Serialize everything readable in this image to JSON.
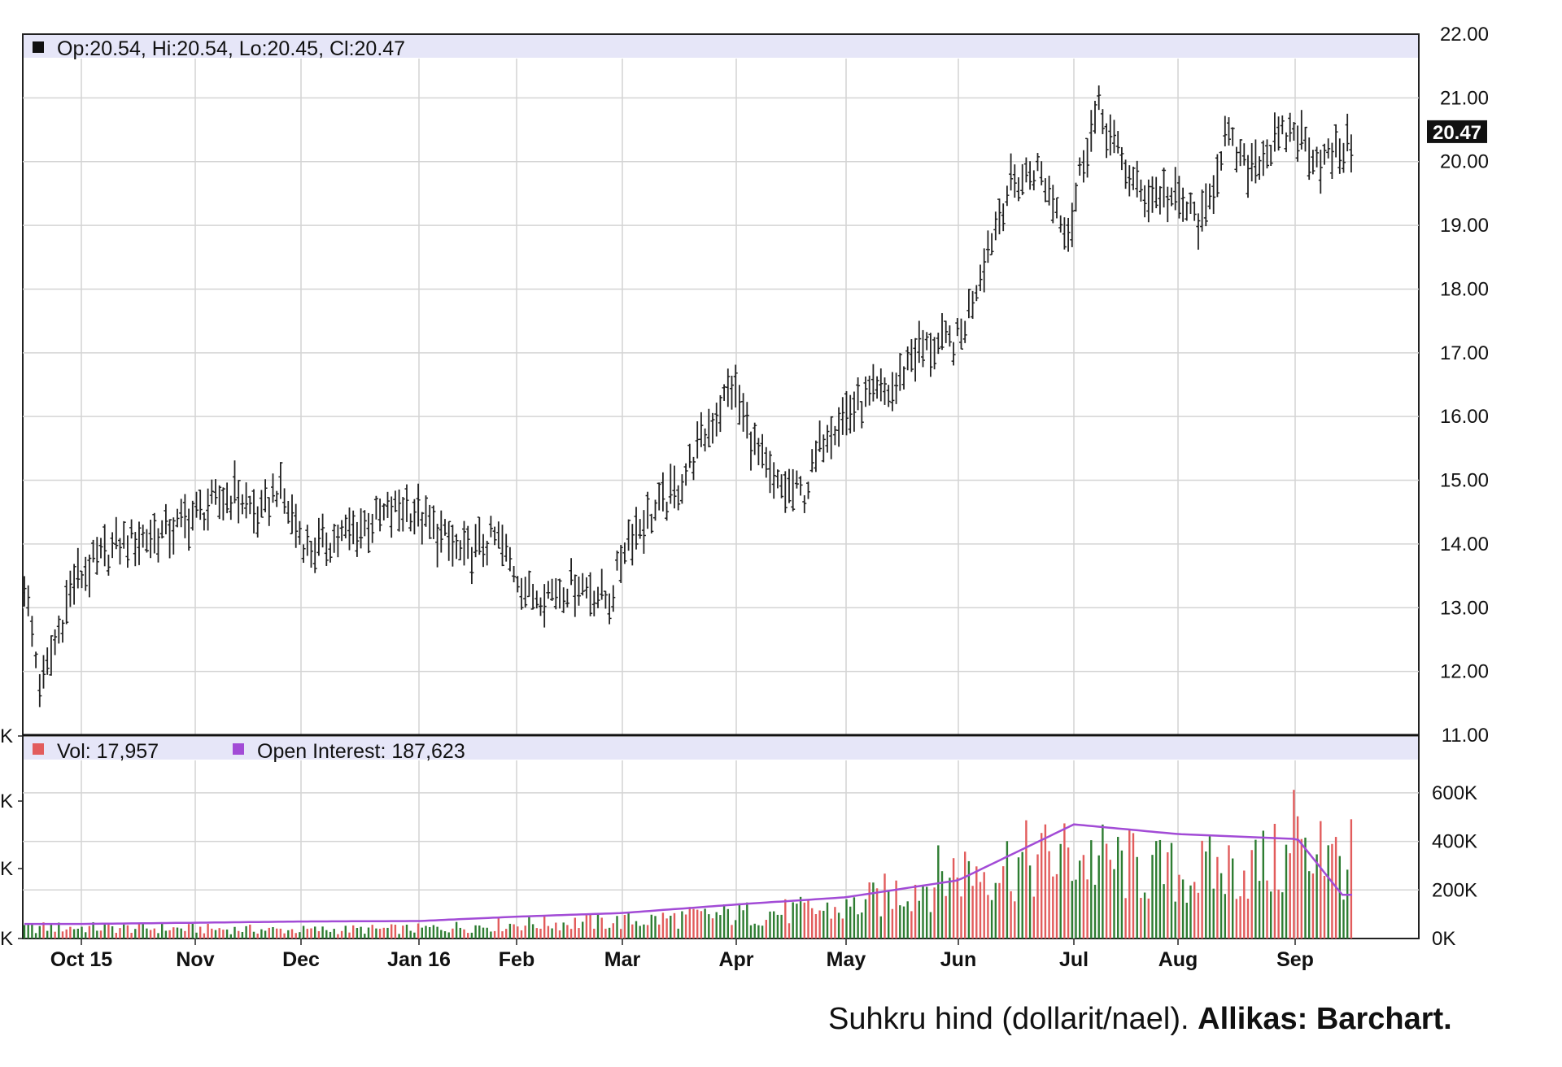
{
  "caption": {
    "text": "Suhkru hind (dollarit/nael).",
    "source": "Allikas: Barchart."
  },
  "colors": {
    "price_bar": "#222222",
    "volume_up": "#2e7d32",
    "volume_down": "#e25c5c",
    "open_interest": "#a24bd6",
    "legend_band": "#e6e6f8",
    "grid": "#d4d4d4"
  },
  "chart_data": [
    {
      "type": "ohlc",
      "legend": "Op:20.54, Hi:20.54, Lo:20.45, Cl:20.47",
      "last_value_label": "20.47",
      "x_axis_labels": [
        "Oct 15",
        "Nov",
        "Dec",
        "Jan 16",
        "Feb",
        "Mar",
        "Apr",
        "May",
        "Jun",
        "Jul",
        "Aug",
        "Sep"
      ],
      "ylim": [
        11,
        22
      ],
      "y_ticks": [
        "11.00",
        "12.00",
        "13.00",
        "14.00",
        "15.00",
        "16.00",
        "17.00",
        "18.00",
        "19.00",
        "20.00",
        "21.00",
        "22.00"
      ],
      "grid": true,
      "series": [
        {
          "values": [
            {
              "month": "Oct 15",
              "approx_close": 13.4
            },
            {
              "month": "Nov",
              "approx_close": 14.2
            },
            {
              "month": "Dec",
              "approx_close": 14.5
            },
            {
              "month": "Jan 16",
              "approx_close": 14.4
            },
            {
              "month": "Feb",
              "approx_close": 13.3
            },
            {
              "month": "Mar",
              "approx_close": 14.0
            },
            {
              "month": "Apr",
              "approx_close": 15.4
            },
            {
              "month": "May",
              "approx_close": 16.0
            },
            {
              "month": "Jun",
              "approx_close": 19.3
            },
            {
              "month": "Jul",
              "approx_close": 20.3
            },
            {
              "month": "Aug",
              "approx_close": 19.0
            },
            {
              "month": "Sep",
              "approx_close": 20.1
            }
          ],
          "key_points": [
            {
              "label": "low",
              "date_approx": "Oct 15",
              "value": 11.6
            },
            {
              "label": "high",
              "date_approx": "Jul",
              "value": 21.2
            },
            {
              "label": "last",
              "date_approx": "Sep",
              "value": 20.47
            }
          ]
        }
      ]
    },
    {
      "type": "bar",
      "legend_volume": "Vol: 17,957",
      "legend_open_interest": "Open Interest: 187,623",
      "ylim": [
        0,
        700000
      ],
      "y_ticks": [
        "0K",
        "200K",
        "400K",
        "600K"
      ],
      "left_tick_fragment": "K",
      "categories": [
        "Oct 15",
        "Nov",
        "Dec",
        "Jan 16",
        "Feb",
        "Mar",
        "Apr",
        "May",
        "Jun",
        "Jul",
        "Aug",
        "Sep"
      ],
      "series": [
        {
          "type": "bar",
          "values": [
            45000,
            40000,
            35000,
            40000,
            60000,
            70000,
            100000,
            120000,
            280000,
            340000,
            260000,
            320000
          ]
        },
        {
          "type": "line",
          "values": [
            60000,
            65000,
            70000,
            72000,
            90000,
            105000,
            140000,
            170000,
            240000,
            470000,
            430000,
            410000
          ]
        }
      ]
    }
  ]
}
